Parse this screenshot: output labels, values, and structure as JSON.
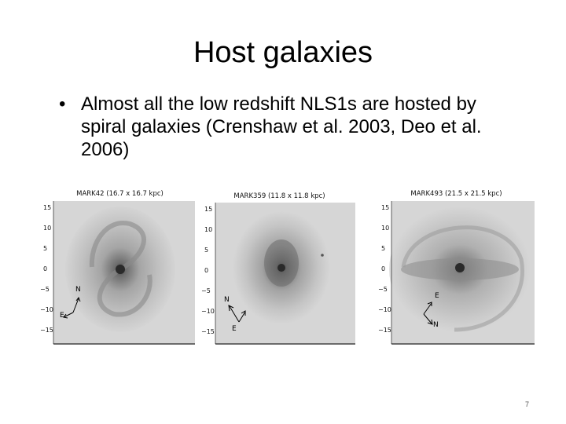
{
  "slide": {
    "title": "Host galaxies",
    "bullet": "Almost all the low redshift NLS1s are hosted by spiral galaxies (Crenshaw et al. 2003, Deo et al. 2006)",
    "bullet_symbol": "•",
    "page_number": "7"
  },
  "panels": [
    {
      "label": "MARK42 (16.7 x 16.7 kpc)",
      "y_ticks": [
        "15",
        "10",
        "5",
        "0",
        "−5",
        "−10",
        "−15"
      ],
      "compass": {
        "north": "N",
        "east": "E"
      }
    },
    {
      "label": "MARK359 (11.8 x 11.8 kpc)",
      "y_ticks": [
        "15",
        "10",
        "5",
        "0",
        "−5",
        "−10",
        "−15"
      ],
      "compass": {
        "north": "N",
        "east": "E"
      }
    },
    {
      "label": "MARK493 (21.5 x 21.5 kpc)",
      "y_ticks": [
        "15",
        "10",
        "5",
        "0",
        "−5",
        "−10",
        "−15"
      ],
      "compass": {
        "north": "N",
        "east": "E"
      }
    }
  ],
  "colors": {
    "image_background": "#d6d6d6",
    "galaxy_core": "#2a2a2a",
    "text": "#000000"
  }
}
